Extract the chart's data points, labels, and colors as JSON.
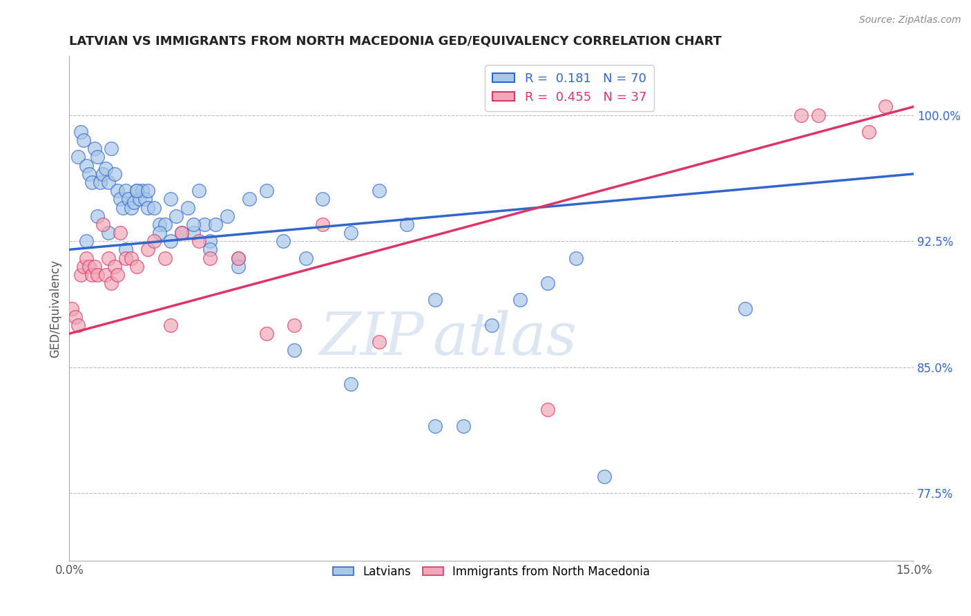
{
  "title": "LATVIAN VS IMMIGRANTS FROM NORTH MACEDONIA GED/EQUIVALENCY CORRELATION CHART",
  "source": "Source: ZipAtlas.com",
  "xlabel": "",
  "ylabel": "GED/Equivalency",
  "xmin": 0.0,
  "xmax": 15.0,
  "ymin": 73.5,
  "ymax": 103.5,
  "yticks": [
    77.5,
    85.0,
    92.5,
    100.0
  ],
  "xticks": [
    0.0,
    15.0
  ],
  "r_latvian": 0.181,
  "n_latvian": 70,
  "r_macedonia": 0.455,
  "n_macedonia": 37,
  "blue_color": "#a8c8e8",
  "pink_color": "#f0a8b8",
  "blue_line_color": "#3366cc",
  "pink_line_color": "#dd3366",
  "legend_label_latvian": "Latvians",
  "legend_label_macedonia": "Immigrants from North Macedonia",
  "watermark_zip": "ZIP",
  "watermark_atlas": "atlas",
  "background_color": "#ffffff",
  "grid_color": "#bbbbbb",
  "blue_trend_x0": 0.0,
  "blue_trend_y0": 92.0,
  "blue_trend_x1": 15.0,
  "blue_trend_y1": 96.5,
  "pink_trend_x0": 0.0,
  "pink_trend_y0": 87.0,
  "pink_trend_x1": 15.0,
  "pink_trend_y1": 100.5,
  "latvian_x": [
    0.15,
    0.2,
    0.25,
    0.3,
    0.35,
    0.4,
    0.45,
    0.5,
    0.55,
    0.6,
    0.65,
    0.7,
    0.75,
    0.8,
    0.85,
    0.9,
    0.95,
    1.0,
    1.05,
    1.1,
    1.15,
    1.2,
    1.25,
    1.3,
    1.35,
    1.4,
    1.5,
    1.6,
    1.7,
    1.8,
    1.9,
    2.0,
    2.1,
    2.2,
    2.3,
    2.4,
    2.5,
    2.6,
    2.8,
    3.0,
    3.2,
    3.5,
    3.8,
    4.2,
    4.5,
    5.0,
    5.5,
    6.0,
    6.5,
    7.0,
    7.5,
    8.0,
    9.0,
    9.5,
    0.3,
    0.5,
    0.7,
    1.0,
    1.2,
    1.4,
    1.6,
    1.8,
    2.2,
    2.5,
    3.0,
    4.0,
    5.0,
    6.5,
    8.5,
    12.0
  ],
  "latvian_y": [
    97.5,
    99.0,
    98.5,
    97.0,
    96.5,
    96.0,
    98.0,
    97.5,
    96.0,
    96.5,
    96.8,
    96.0,
    98.0,
    96.5,
    95.5,
    95.0,
    94.5,
    95.5,
    95.0,
    94.5,
    94.8,
    95.5,
    95.0,
    95.5,
    95.0,
    94.5,
    94.5,
    93.5,
    93.5,
    95.0,
    94.0,
    93.0,
    94.5,
    93.0,
    95.5,
    93.5,
    92.5,
    93.5,
    94.0,
    91.5,
    95.0,
    95.5,
    92.5,
    91.5,
    95.0,
    93.0,
    95.5,
    93.5,
    89.0,
    81.5,
    87.5,
    89.0,
    91.5,
    78.5,
    92.5,
    94.0,
    93.0,
    92.0,
    95.5,
    95.5,
    93.0,
    92.5,
    93.5,
    92.0,
    91.0,
    86.0,
    84.0,
    81.5,
    90.0,
    88.5
  ],
  "macedonia_x": [
    0.05,
    0.1,
    0.15,
    0.2,
    0.25,
    0.3,
    0.35,
    0.4,
    0.45,
    0.5,
    0.6,
    0.65,
    0.7,
    0.75,
    0.8,
    0.85,
    0.9,
    1.0,
    1.1,
    1.2,
    1.4,
    1.5,
    1.7,
    1.8,
    2.0,
    2.3,
    2.5,
    3.0,
    3.5,
    4.0,
    4.5,
    5.5,
    8.5,
    13.0,
    13.3,
    14.2,
    14.5
  ],
  "macedonia_y": [
    88.5,
    88.0,
    87.5,
    90.5,
    91.0,
    91.5,
    91.0,
    90.5,
    91.0,
    90.5,
    93.5,
    90.5,
    91.5,
    90.0,
    91.0,
    90.5,
    93.0,
    91.5,
    91.5,
    91.0,
    92.0,
    92.5,
    91.5,
    87.5,
    93.0,
    92.5,
    91.5,
    91.5,
    87.0,
    87.5,
    93.5,
    86.5,
    82.5,
    100.0,
    100.0,
    99.0,
    100.5
  ]
}
